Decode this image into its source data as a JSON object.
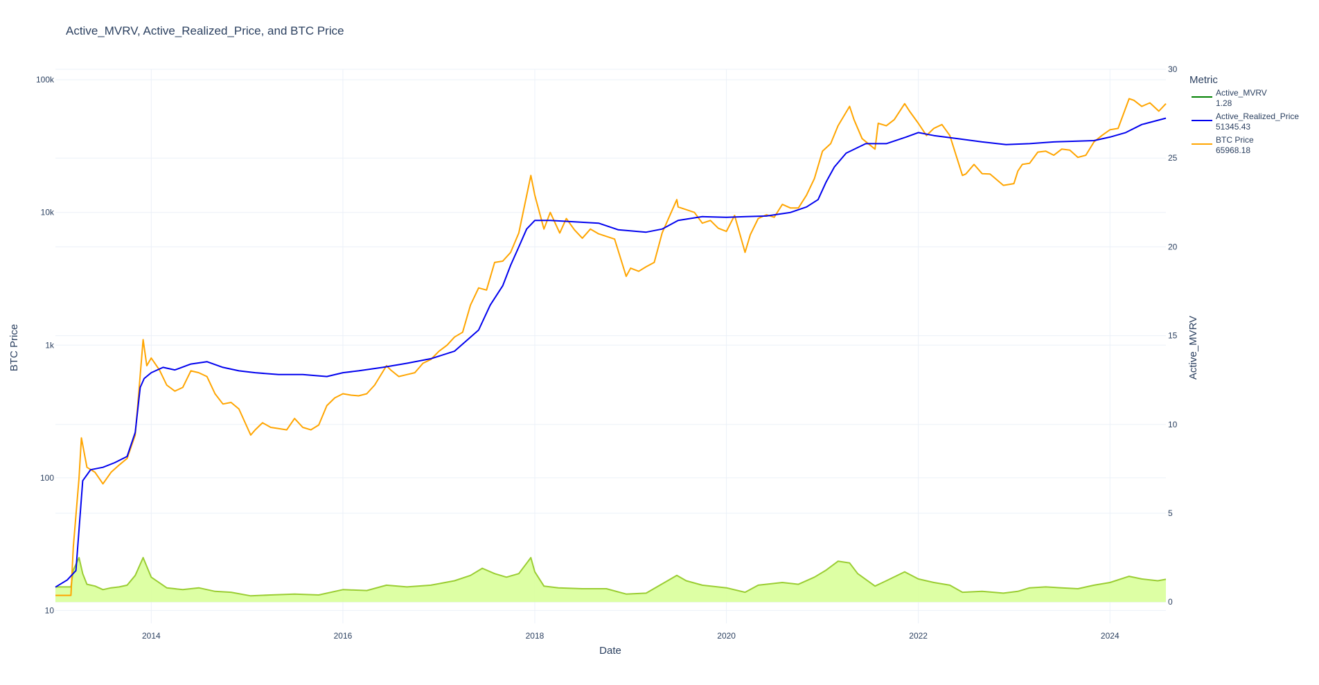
{
  "title": "Active_MVRV, Active_Realized_Price, and BTC Price",
  "legend": {
    "title": "Metric",
    "position": "right",
    "items": [
      {
        "name": "Active_MVRV",
        "value": "1.28",
        "color": "#008000"
      },
      {
        "name": "Active_Realized_Price",
        "value": "51345.43",
        "color": "#0000ee"
      },
      {
        "name": "BTC Price",
        "value": "65968.18",
        "color": "#ffa500"
      }
    ]
  },
  "chart_data": {
    "type": "line",
    "title": "Active_MVRV, Active_Realized_Price, and BTC Price",
    "xlabel": "Date",
    "ylabel": "BTC Price",
    "y2label": "Active_MVRV",
    "xlim": [
      "2013-01-01",
      "2024-08-01"
    ],
    "x_ticks": [
      "2014",
      "2016",
      "2018",
      "2020",
      "2022",
      "2024"
    ],
    "y_scale": "log",
    "ylim": [
      8,
      120000
    ],
    "y_ticks": [
      "10",
      "100",
      "1k",
      "10k",
      "100k"
    ],
    "y2lim": [
      -1.2,
      30
    ],
    "y2_ticks": [
      "0",
      "5",
      "10",
      "15",
      "20",
      "25",
      "30"
    ],
    "grid": true,
    "series": [
      {
        "name": "BTC Price",
        "axis": "y",
        "color": "#ffa500",
        "x": [
          "2013-01-01",
          "2013-03-01",
          "2013-03-10",
          "2013-04-01",
          "2013-04-10",
          "2013-05-01",
          "2013-06-01",
          "2013-07-01",
          "2013-08-01",
          "2013-09-01",
          "2013-10-01",
          "2013-11-01",
          "2013-11-15",
          "2013-12-01",
          "2013-12-15",
          "2014-01-01",
          "2014-02-01",
          "2014-03-01",
          "2014-04-01",
          "2014-05-01",
          "2014-06-01",
          "2014-07-01",
          "2014-08-01",
          "2014-09-01",
          "2014-10-01",
          "2014-11-01",
          "2014-12-01",
          "2015-01-15",
          "2015-02-01",
          "2015-03-01",
          "2015-04-01",
          "2015-05-01",
          "2015-06-01",
          "2015-07-01",
          "2015-08-01",
          "2015-09-01",
          "2015-10-01",
          "2015-11-01",
          "2015-12-01",
          "2016-01-01",
          "2016-02-01",
          "2016-03-01",
          "2016-04-01",
          "2016-05-01",
          "2016-06-15",
          "2016-07-01",
          "2016-08-01",
          "2016-09-01",
          "2016-10-01",
          "2016-11-01",
          "2016-12-01",
          "2017-01-01",
          "2017-02-01",
          "2017-03-01",
          "2017-04-01",
          "2017-05-01",
          "2017-06-01",
          "2017-07-01",
          "2017-08-01",
          "2017-09-01",
          "2017-10-01",
          "2017-11-01",
          "2017-12-17",
          "2018-01-01",
          "2018-02-05",
          "2018-03-01",
          "2018-04-06",
          "2018-05-01",
          "2018-06-01",
          "2018-07-01",
          "2018-08-01",
          "2018-09-01",
          "2018-10-01",
          "2018-11-01",
          "2018-12-15",
          "2019-01-01",
          "2019-02-01",
          "2019-03-01",
          "2019-04-01",
          "2019-05-01",
          "2019-06-26",
          "2019-07-01",
          "2019-08-01",
          "2019-09-01",
          "2019-10-01",
          "2019-11-01",
          "2019-12-01",
          "2020-01-01",
          "2020-02-01",
          "2020-03-12",
          "2020-04-01",
          "2020-05-01",
          "2020-06-01",
          "2020-07-01",
          "2020-08-01",
          "2020-09-01",
          "2020-10-01",
          "2020-11-01",
          "2020-12-01",
          "2021-01-01",
          "2021-02-01",
          "2021-03-01",
          "2021-04-14",
          "2021-05-01",
          "2021-06-01",
          "2021-07-20",
          "2021-08-01",
          "2021-09-01",
          "2021-10-01",
          "2021-11-10",
          "2021-12-01",
          "2022-01-01",
          "2022-02-01",
          "2022-03-01",
          "2022-04-01",
          "2022-05-01",
          "2022-06-18",
          "2022-07-01",
          "2022-08-01",
          "2022-09-01",
          "2022-10-01",
          "2022-11-21",
          "2022-12-31",
          "2023-01-15",
          "2023-02-01",
          "2023-03-01",
          "2023-04-01",
          "2023-05-01",
          "2023-06-01",
          "2023-07-01",
          "2023-08-01",
          "2023-09-01",
          "2023-10-01",
          "2023-11-01",
          "2023-12-01",
          "2024-01-01",
          "2024-02-01",
          "2024-03-14",
          "2024-04-01",
          "2024-05-01",
          "2024-06-01",
          "2024-07-05",
          "2024-08-01"
        ],
        "values": [
          13,
          13,
          30,
          100,
          200,
          120,
          110,
          90,
          110,
          125,
          140,
          210,
          450,
          1100,
          700,
          800,
          650,
          500,
          450,
          480,
          640,
          620,
          580,
          430,
          360,
          370,
          330,
          210,
          230,
          260,
          240,
          235,
          230,
          280,
          240,
          230,
          250,
          350,
          400,
          430,
          420,
          415,
          430,
          500,
          700,
          650,
          580,
          600,
          620,
          730,
          780,
          900,
          1000,
          1150,
          1250,
          2000,
          2700,
          2600,
          4200,
          4300,
          5000,
          7000,
          19000,
          13500,
          7500,
          10000,
          7000,
          9000,
          7400,
          6400,
          7500,
          6900,
          6600,
          6300,
          3300,
          3800,
          3600,
          3900,
          4200,
          7000,
          12500,
          11000,
          10500,
          10000,
          8300,
          8700,
          7600,
          7200,
          9500,
          5000,
          6800,
          9000,
          9600,
          9200,
          11500,
          10800,
          10800,
          13500,
          18000,
          29000,
          33000,
          45000,
          63000,
          50000,
          36000,
          30000,
          47000,
          45000,
          50000,
          66000,
          57000,
          47000,
          38000,
          43000,
          46000,
          38000,
          19000,
          19500,
          23000,
          19600,
          19500,
          16000,
          16500,
          20500,
          23000,
          23500,
          28500,
          29000,
          27000,
          30000,
          29500,
          26000,
          27000,
          34000,
          38000,
          42000,
          43000,
          72000,
          70000,
          63000,
          67000,
          58000,
          66000
        ]
      },
      {
        "name": "Active_Realized_Price",
        "axis": "y",
        "color": "#0000ee",
        "x": [
          "2013-01-01",
          "2013-02-15",
          "2013-03-20",
          "2013-04-15",
          "2013-05-15",
          "2013-07-01",
          "2013-08-15",
          "2013-10-01",
          "2013-11-01",
          "2013-11-20",
          "2013-12-05",
          "2014-01-01",
          "2014-02-15",
          "2014-04-01",
          "2014-06-01",
          "2014-08-01",
          "2014-10-01",
          "2014-12-01",
          "2015-02-01",
          "2015-05-01",
          "2015-08-01",
          "2015-11-01",
          "2016-01-01",
          "2016-03-01",
          "2016-06-01",
          "2016-09-01",
          "2016-12-01",
          "2017-03-01",
          "2017-06-01",
          "2017-07-15",
          "2017-09-01",
          "2017-10-01",
          "2017-11-01",
          "2017-12-01",
          "2018-01-01",
          "2018-03-01",
          "2018-06-01",
          "2018-09-01",
          "2018-11-15",
          "2019-03-01",
          "2019-05-01",
          "2019-07-01",
          "2019-10-01",
          "2020-01-01",
          "2020-03-15",
          "2020-06-01",
          "2020-09-01",
          "2020-11-01",
          "2020-12-15",
          "2021-01-15",
          "2021-02-15",
          "2021-04-01",
          "2021-06-15",
          "2021-09-01",
          "2021-11-15",
          "2022-01-01",
          "2022-03-01",
          "2022-06-01",
          "2022-09-01",
          "2022-12-01",
          "2023-03-01",
          "2023-06-01",
          "2023-09-01",
          "2023-11-01",
          "2024-01-01",
          "2024-03-01",
          "2024-05-01",
          "2024-08-01"
        ],
        "values": [
          15,
          17,
          20,
          95,
          115,
          120,
          130,
          145,
          220,
          480,
          560,
          620,
          680,
          650,
          720,
          750,
          680,
          640,
          620,
          600,
          600,
          580,
          620,
          640,
          680,
          730,
          790,
          900,
          1300,
          2000,
          2800,
          4000,
          5500,
          7500,
          8700,
          8700,
          8500,
          8300,
          7400,
          7100,
          7500,
          8700,
          9300,
          9200,
          9300,
          9400,
          10000,
          11000,
          12500,
          17000,
          22000,
          28000,
          33000,
          33000,
          37000,
          40000,
          38000,
          36000,
          34000,
          32500,
          33000,
          34000,
          34500,
          34800,
          37000,
          40000,
          46000,
          51345
        ]
      },
      {
        "name": "Active_MVRV",
        "axis": "y2",
        "color": "#9acd32",
        "fill": "#d9ff9a",
        "x": [
          "2013-01-01",
          "2013-03-01",
          "2013-03-10",
          "2013-04-01",
          "2013-04-15",
          "2013-05-01",
          "2013-06-01",
          "2013-07-01",
          "2013-08-01",
          "2013-09-01",
          "2013-10-01",
          "2013-11-01",
          "2013-12-01",
          "2014-01-01",
          "2014-03-01",
          "2014-05-01",
          "2014-07-01",
          "2014-09-01",
          "2014-11-01",
          "2015-01-15",
          "2015-04-01",
          "2015-07-01",
          "2015-10-01",
          "2016-01-01",
          "2016-04-01",
          "2016-06-15",
          "2016-09-01",
          "2016-12-01",
          "2017-03-01",
          "2017-05-01",
          "2017-06-15",
          "2017-08-01",
          "2017-09-15",
          "2017-11-01",
          "2017-12-17",
          "2018-01-01",
          "2018-02-05",
          "2018-04-01",
          "2018-07-01",
          "2018-10-01",
          "2018-12-15",
          "2019-03-01",
          "2019-06-26",
          "2019-08-01",
          "2019-10-01",
          "2020-01-01",
          "2020-03-12",
          "2020-05-01",
          "2020-08-01",
          "2020-10-01",
          "2020-12-01",
          "2021-01-15",
          "2021-03-01",
          "2021-04-14",
          "2021-05-15",
          "2021-07-20",
          "2021-09-01",
          "2021-11-10",
          "2022-01-01",
          "2022-03-01",
          "2022-05-01",
          "2022-06-18",
          "2022-09-01",
          "2022-11-21",
          "2023-01-15",
          "2023-03-01",
          "2023-05-01",
          "2023-07-01",
          "2023-09-01",
          "2023-11-01",
          "2024-01-01",
          "2024-03-14",
          "2024-05-01",
          "2024-07-01",
          "2024-08-01"
        ],
        "values": [
          0.85,
          0.85,
          1.8,
          2.5,
          1.6,
          1.0,
          0.9,
          0.7,
          0.8,
          0.85,
          0.95,
          1.5,
          2.5,
          1.4,
          0.8,
          0.7,
          0.8,
          0.6,
          0.55,
          0.35,
          0.4,
          0.45,
          0.4,
          0.7,
          0.65,
          0.95,
          0.85,
          0.95,
          1.2,
          1.5,
          1.9,
          1.6,
          1.4,
          1.6,
          2.5,
          1.7,
          0.9,
          0.8,
          0.75,
          0.75,
          0.45,
          0.5,
          1.5,
          1.2,
          0.95,
          0.8,
          0.55,
          0.95,
          1.1,
          1.0,
          1.4,
          1.8,
          2.3,
          2.2,
          1.6,
          0.9,
          1.2,
          1.7,
          1.3,
          1.1,
          0.95,
          0.55,
          0.6,
          0.5,
          0.6,
          0.8,
          0.85,
          0.8,
          0.75,
          0.95,
          1.1,
          1.45,
          1.3,
          1.2,
          1.28
        ]
      }
    ]
  }
}
